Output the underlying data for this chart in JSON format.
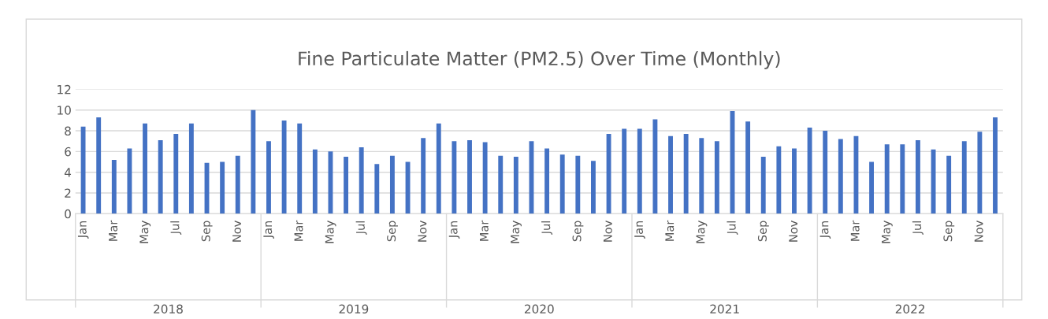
{
  "chart_data": {
    "type": "bar",
    "title": "Fine Particulate Matter (PM2.5) Over Time (Monthly)",
    "categories": [
      "Jan",
      null,
      "Mar",
      null,
      "May",
      null,
      "Jul",
      null,
      "Sep",
      null,
      "Nov",
      null,
      "Jan",
      null,
      "Mar",
      null,
      "May",
      null,
      "Jul",
      null,
      "Sep",
      null,
      "Nov",
      null,
      "Jan",
      null,
      "Mar",
      null,
      "May",
      null,
      "Jul",
      null,
      "Sep",
      null,
      "Nov",
      null,
      "Jan",
      null,
      "Mar",
      null,
      "May",
      null,
      "Jul",
      null,
      "Sep",
      null,
      "Nov",
      null,
      "Jan",
      null,
      "Mar",
      null,
      "May",
      null,
      "Jul",
      null,
      "Sep",
      null,
      "Nov",
      null
    ],
    "values": [
      8.4,
      9.3,
      5.2,
      6.3,
      8.7,
      7.1,
      7.7,
      8.7,
      4.9,
      5.0,
      5.6,
      10.0,
      7.0,
      9.0,
      8.7,
      6.2,
      6.0,
      5.5,
      6.4,
      4.8,
      5.6,
      5.0,
      7.3,
      8.7,
      7.0,
      7.1,
      6.9,
      5.6,
      5.5,
      7.0,
      6.3,
      5.7,
      5.6,
      5.1,
      7.7,
      8.2,
      8.2,
      9.1,
      7.5,
      7.7,
      7.3,
      7.0,
      9.9,
      8.9,
      5.5,
      6.5,
      6.3,
      8.3,
      8.0,
      7.2,
      7.5,
      5.0,
      6.7,
      6.7,
      7.1,
      6.2,
      5.6,
      7.0,
      7.9,
      9.3
    ],
    "color": "#4472c4",
    "ylim": [
      0,
      12
    ],
    "yticks": [
      0,
      2,
      4,
      6,
      8,
      10,
      12
    ],
    "grid": "y",
    "annotations": [
      "2018",
      "2019",
      "2020",
      "2021",
      "2022"
    ]
  }
}
